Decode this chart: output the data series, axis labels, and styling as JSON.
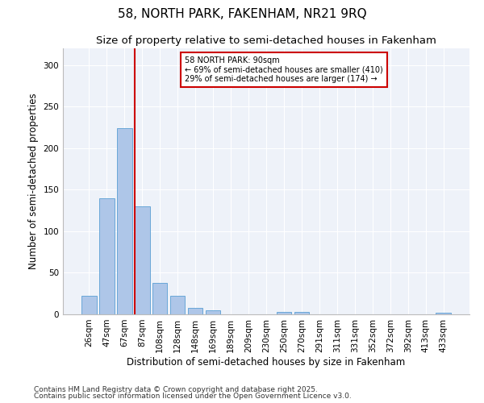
{
  "title": "58, NORTH PARK, FAKENHAM, NR21 9RQ",
  "subtitle": "Size of property relative to semi-detached houses in Fakenham",
  "xlabel": "Distribution of semi-detached houses by size in Fakenham",
  "ylabel": "Number of semi-detached properties",
  "categories": [
    "26sqm",
    "47sqm",
    "67sqm",
    "87sqm",
    "108sqm",
    "128sqm",
    "148sqm",
    "169sqm",
    "189sqm",
    "209sqm",
    "230sqm",
    "250sqm",
    "270sqm",
    "291sqm",
    "311sqm",
    "331sqm",
    "352sqm",
    "372sqm",
    "392sqm",
    "413sqm",
    "433sqm"
  ],
  "values": [
    22,
    140,
    224,
    130,
    38,
    22,
    8,
    5,
    0,
    0,
    0,
    3,
    3,
    0,
    0,
    0,
    0,
    0,
    0,
    0,
    2
  ],
  "bar_color": "#aec6e8",
  "bar_edge_color": "#5a9fd4",
  "vline_index": 2.575,
  "vline_color": "#cc0000",
  "annotation_title": "58 NORTH PARK: 90sqm",
  "annotation_line2": "← 69% of semi-detached houses are smaller (410)",
  "annotation_line3": "29% of semi-detached houses are larger (174) →",
  "annotation_box_color": "#cc0000",
  "ylim": [
    0,
    320
  ],
  "yticks": [
    0,
    50,
    100,
    150,
    200,
    250,
    300
  ],
  "footnote1": "Contains HM Land Registry data © Crown copyright and database right 2025.",
  "footnote2": "Contains public sector information licensed under the Open Government Licence v3.0.",
  "bg_color": "#eef2f9",
  "title_fontsize": 11,
  "subtitle_fontsize": 9.5,
  "axis_label_fontsize": 8.5,
  "tick_fontsize": 7.5,
  "footnote_fontsize": 6.5
}
